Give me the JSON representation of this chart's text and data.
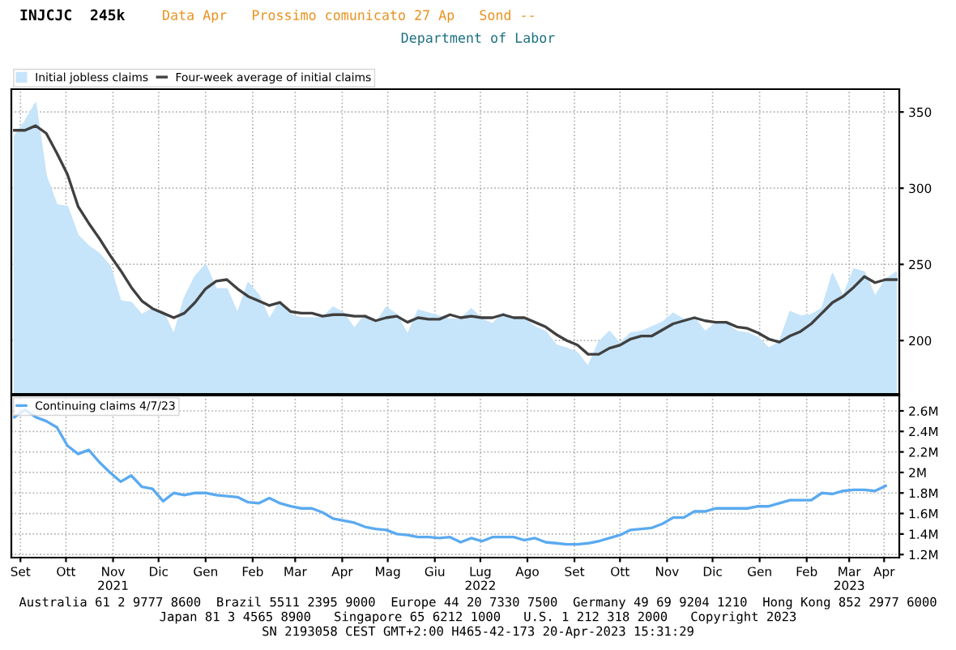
{
  "chart_data": [
    {
      "type": "area",
      "title": "INJCJC  245k",
      "subtitle": "Department of Labor",
      "annotations": [
        "Data Apr   Prossimo comunicato 27 Ap   Sond --"
      ],
      "x": [
        "2021-09-11",
        "2021-09-18",
        "2021-09-25",
        "2021-10-02",
        "2021-10-09",
        "2021-10-16",
        "2021-10-23",
        "2021-10-30",
        "2021-11-06",
        "2021-11-13",
        "2021-11-20",
        "2021-11-27",
        "2021-12-04",
        "2021-12-11",
        "2021-12-18",
        "2021-12-25",
        "2022-01-01",
        "2022-01-08",
        "2022-01-15",
        "2022-01-22",
        "2022-01-29",
        "2022-02-05",
        "2022-02-12",
        "2022-02-19",
        "2022-02-26",
        "2022-03-05",
        "2022-03-12",
        "2022-03-19",
        "2022-03-26",
        "2022-04-02",
        "2022-04-09",
        "2022-04-16",
        "2022-04-23",
        "2022-04-30",
        "2022-05-07",
        "2022-05-14",
        "2022-05-21",
        "2022-05-28",
        "2022-06-04",
        "2022-06-11",
        "2022-06-18",
        "2022-06-25",
        "2022-07-02",
        "2022-07-09",
        "2022-07-16",
        "2022-07-23",
        "2022-07-30",
        "2022-08-06",
        "2022-08-13",
        "2022-08-20",
        "2022-08-27",
        "2022-09-03",
        "2022-09-10",
        "2022-09-17",
        "2022-09-24",
        "2022-10-01",
        "2022-10-08",
        "2022-10-15",
        "2022-10-22",
        "2022-10-29",
        "2022-11-05",
        "2022-11-12",
        "2022-11-19",
        "2022-11-26",
        "2022-12-03",
        "2022-12-10",
        "2022-12-17",
        "2022-12-24",
        "2022-12-31",
        "2023-01-07",
        "2023-01-14",
        "2023-01-21",
        "2023-01-28",
        "2023-02-04",
        "2023-02-11",
        "2023-02-18",
        "2023-02-25",
        "2023-03-04",
        "2023-03-11",
        "2023-03-18",
        "2023-03-25",
        "2023-04-01",
        "2023-04-08",
        "2023-04-15"
      ],
      "series": [
        {
          "name": "Initial jobless claims",
          "type": "area",
          "color": "#c6e4fa",
          "values": [
            334,
            344,
            356,
            308,
            289,
            288,
            269,
            262,
            257,
            249,
            226,
            225,
            217,
            221,
            219,
            204,
            228,
            242,
            250,
            234,
            234,
            218,
            238,
            230,
            214,
            226,
            217,
            215,
            215,
            215,
            222,
            218,
            208,
            217,
            211,
            222,
            217,
            204,
            220,
            218,
            216,
            214,
            214,
            221,
            214,
            211,
            218,
            214,
            214,
            209,
            206,
            197,
            195,
            192,
            183,
            199,
            206,
            198,
            205,
            206,
            209,
            212,
            218,
            214,
            215,
            206,
            211,
            211,
            206,
            205,
            202,
            195,
            199,
            219,
            216,
            217,
            221,
            244,
            229,
            247,
            245,
            229,
            240,
            245
          ]
        },
        {
          "name": "Four-week average of initial claims",
          "type": "line",
          "color": "#404040",
          "values": [
            338,
            338,
            341,
            336,
            323,
            309,
            288,
            277,
            267,
            256,
            246,
            235,
            226,
            221,
            218,
            215,
            218,
            225,
            234,
            239,
            240,
            234,
            229,
            226,
            223,
            225,
            219,
            218,
            218,
            216,
            217,
            217,
            216,
            216,
            213,
            215,
            216,
            212,
            215,
            214,
            214,
            217,
            215,
            216,
            215,
            215,
            217,
            215,
            215,
            212,
            209,
            204,
            200,
            197,
            191,
            191,
            195,
            197,
            201,
            203,
            203,
            207,
            211,
            213,
            215,
            213,
            212,
            212,
            209,
            208,
            205,
            201,
            199,
            203,
            206,
            211,
            218,
            225,
            229,
            235,
            242,
            238,
            240,
            240
          ]
        }
      ],
      "xlim": [
        "2021-09-09",
        "2023-04-17"
      ],
      "xticks": [
        {
          "value": "2021-09-15",
          "label": null
        },
        {
          "value": "2021-10-15",
          "label": null
        },
        {
          "value": "2021-11-15",
          "label": null
        },
        {
          "value": "2021-12-15",
          "label": null
        },
        {
          "value": "2022-01-15",
          "label": null
        },
        {
          "value": "2022-02-15",
          "label": null
        },
        {
          "value": "2022-03-15",
          "label": null
        },
        {
          "value": "2022-04-15",
          "label": null
        },
        {
          "value": "2022-05-15",
          "label": null
        },
        {
          "value": "2022-06-15",
          "label": null
        },
        {
          "value": "2022-07-15",
          "label": null
        },
        {
          "value": "2022-08-15",
          "label": null
        },
        {
          "value": "2022-09-15",
          "label": null
        },
        {
          "value": "2022-10-15",
          "label": null
        },
        {
          "value": "2022-11-15",
          "label": null
        },
        {
          "value": "2022-12-15",
          "label": null
        },
        {
          "value": "2023-01-15",
          "label": null
        },
        {
          "value": "2023-02-15",
          "label": null
        },
        {
          "value": "2023-03-15",
          "label": null
        },
        {
          "value": "2023-04-07",
          "label": null
        }
      ],
      "ylim": [
        165,
        365
      ],
      "yticks": [
        200,
        250,
        300,
        350
      ],
      "tick_labels": "y",
      "grid": true,
      "legend": "top left"
    },
    {
      "type": "line",
      "x": [
        "2021-09-11",
        "2021-09-18",
        "2021-09-25",
        "2021-10-02",
        "2021-10-09",
        "2021-10-16",
        "2021-10-23",
        "2021-10-30",
        "2021-11-06",
        "2021-11-13",
        "2021-11-20",
        "2021-11-27",
        "2021-12-04",
        "2021-12-11",
        "2021-12-18",
        "2021-12-25",
        "2022-01-01",
        "2022-01-08",
        "2022-01-15",
        "2022-01-22",
        "2022-01-29",
        "2022-02-05",
        "2022-02-12",
        "2022-02-19",
        "2022-02-26",
        "2022-03-05",
        "2022-03-12",
        "2022-03-19",
        "2022-03-26",
        "2022-04-02",
        "2022-04-09",
        "2022-04-16",
        "2022-04-23",
        "2022-04-30",
        "2022-05-07",
        "2022-05-14",
        "2022-05-21",
        "2022-05-28",
        "2022-06-04",
        "2022-06-11",
        "2022-06-18",
        "2022-06-25",
        "2022-07-02",
        "2022-07-09",
        "2022-07-16",
        "2022-07-23",
        "2022-07-30",
        "2022-08-06",
        "2022-08-13",
        "2022-08-20",
        "2022-08-27",
        "2022-09-03",
        "2022-09-10",
        "2022-09-17",
        "2022-09-24",
        "2022-10-01",
        "2022-10-08",
        "2022-10-15",
        "2022-10-22",
        "2022-10-29",
        "2022-11-05",
        "2022-11-12",
        "2022-11-19",
        "2022-11-26",
        "2022-12-03",
        "2022-12-10",
        "2022-12-17",
        "2022-12-24",
        "2022-12-31",
        "2023-01-07",
        "2023-01-14",
        "2023-01-21",
        "2023-01-28",
        "2023-02-04",
        "2023-02-11",
        "2023-02-18",
        "2023-02-25",
        "2023-03-04",
        "2023-03-11",
        "2023-03-18",
        "2023-03-25",
        "2023-04-01",
        "2023-04-08"
      ],
      "series": [
        {
          "name": "Continuing claims 4/7/23",
          "color": "#5aaaf0",
          "values": [
            2.54,
            2.61,
            2.54,
            2.5,
            2.44,
            2.26,
            2.18,
            2.22,
            2.1,
            2.0,
            1.91,
            1.97,
            1.86,
            1.84,
            1.72,
            1.8,
            1.78,
            1.8,
            1.8,
            1.78,
            1.77,
            1.76,
            1.71,
            1.7,
            1.75,
            1.7,
            1.67,
            1.65,
            1.65,
            1.61,
            1.55,
            1.53,
            1.51,
            1.47,
            1.45,
            1.44,
            1.4,
            1.39,
            1.37,
            1.37,
            1.36,
            1.37,
            1.32,
            1.36,
            1.33,
            1.37,
            1.37,
            1.37,
            1.34,
            1.36,
            1.32,
            1.31,
            1.3,
            1.3,
            1.31,
            1.33,
            1.36,
            1.39,
            1.44,
            1.45,
            1.46,
            1.5,
            1.56,
            1.56,
            1.62,
            1.62,
            1.65,
            1.65,
            1.65,
            1.65,
            1.67,
            1.67,
            1.7,
            1.73,
            1.73,
            1.73,
            1.8,
            1.79,
            1.82,
            1.83,
            1.83,
            1.82,
            1.87
          ]
        }
      ],
      "xlim": [
        "2021-09-09",
        "2023-04-17"
      ],
      "xticks": [
        {
          "value": "2021-09-15",
          "label": "Set"
        },
        {
          "value": "2021-10-15",
          "label": "Ott"
        },
        {
          "value": "2021-11-15",
          "label": "Nov\n2021"
        },
        {
          "value": "2021-12-15",
          "label": "Dic"
        },
        {
          "value": "2022-01-15",
          "label": "Gen"
        },
        {
          "value": "2022-02-15",
          "label": "Feb"
        },
        {
          "value": "2022-03-15",
          "label": "Mar"
        },
        {
          "value": "2022-04-15",
          "label": "Apr"
        },
        {
          "value": "2022-05-15",
          "label": "Mag"
        },
        {
          "value": "2022-06-15",
          "label": "Giu"
        },
        {
          "value": "2022-07-15",
          "label": "Lug\n2022"
        },
        {
          "value": "2022-08-15",
          "label": "Ago"
        },
        {
          "value": "2022-09-15",
          "label": "Set"
        },
        {
          "value": "2022-10-15",
          "label": "Ott"
        },
        {
          "value": "2022-11-15",
          "label": "Nov"
        },
        {
          "value": "2022-12-15",
          "label": "Dic"
        },
        {
          "value": "2023-01-15",
          "label": "Gen"
        },
        {
          "value": "2023-02-15",
          "label": "Feb"
        },
        {
          "value": "2023-03-15",
          "label": "Mar\n2023"
        },
        {
          "value": "2023-04-07",
          "label": "Apr"
        }
      ],
      "ylim": [
        1.17,
        2.75
      ],
      "yticks": [
        {
          "value": 1.2,
          "label": "1.2M"
        },
        {
          "value": 1.4,
          "label": "1.4M"
        },
        {
          "value": 1.6,
          "label": "1.6M"
        },
        {
          "value": 1.8,
          "label": "1.8M"
        },
        {
          "value": 2.0,
          "label": "2M"
        },
        {
          "value": 2.2,
          "label": "2.2M"
        },
        {
          "value": 2.4,
          "label": "2.4M"
        },
        {
          "value": 2.6,
          "label": "2.6M"
        }
      ],
      "grid": true,
      "legend": "top left",
      "annotations": [
        "Australia 61 2 9777 8600  Brazil 5511 2395 9000  Europe 44 20 7330 7500  Germany 49 69 9204 1210  Hong Kong 852 2977 6000",
        "Japan 81 3 4565 8900   Singapore 65 6212 1000   U.S. 1 212 318 2000   Copyright 2023",
        "SN 2193058 CEST GMT+2:00 H465-42-173 20-Apr-2023 15:31:29"
      ]
    }
  ]
}
